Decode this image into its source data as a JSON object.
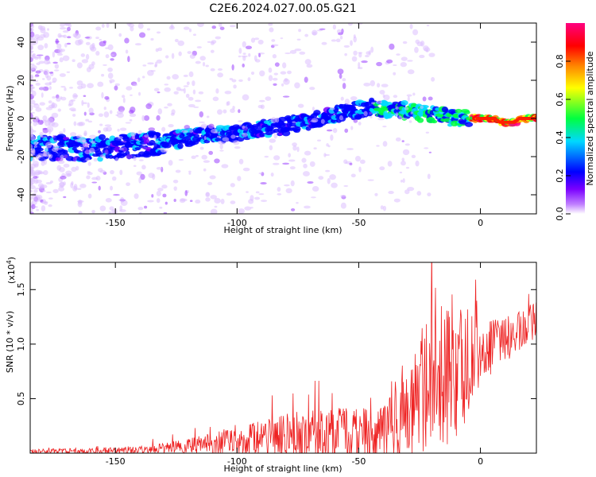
{
  "title": "C2E6.2024.027.00.05.G21",
  "chart_data": [
    {
      "type": "heatmap",
      "xlabel": "Height of straight line (km)",
      "ylabel": "Frequency (Hz)",
      "xlim": [
        -185,
        23
      ],
      "ylim": [
        -50,
        50
      ],
      "xticks": [
        -150,
        -100,
        -50,
        0
      ],
      "yticks": [
        -40,
        -20,
        0,
        20,
        40
      ],
      "colorbar": {
        "label": "Normalized spectral amplitude",
        "range": [
          0,
          1
        ],
        "ticks": [
          "0.0",
          "0.2",
          "0.4",
          "0.6",
          "0.8"
        ],
        "stops": [
          "#ffffff",
          "#c080ff",
          "#7a00ff",
          "#0000ff",
          "#00d8ff",
          "#00ff40",
          "#ffff00",
          "#ff8000",
          "#ff0000",
          "#ff0080"
        ]
      },
      "ridge": [
        {
          "x": -185,
          "y": -15
        },
        {
          "x": -160,
          "y": -16
        },
        {
          "x": -140,
          "y": -14
        },
        {
          "x": -120,
          "y": -10
        },
        {
          "x": -100,
          "y": -7
        },
        {
          "x": -80,
          "y": -4
        },
        {
          "x": -60,
          "y": 2
        },
        {
          "x": -45,
          "y": 6
        },
        {
          "x": -40,
          "y": 5
        },
        {
          "x": -30,
          "y": 4
        },
        {
          "x": -20,
          "y": 2
        },
        {
          "x": -10,
          "y": 0
        },
        {
          "x": 0,
          "y": 0
        },
        {
          "x": 6,
          "y": 0
        },
        {
          "x": 8,
          "y": -2
        },
        {
          "x": 14,
          "y": -2
        },
        {
          "x": 16,
          "y": 0
        },
        {
          "x": 23,
          "y": 0
        }
      ]
    },
    {
      "type": "line",
      "xlabel": "Height of straight line (km)",
      "ylabel": "SNR (10 * v/v)",
      "multiplier": "(x10",
      "multiplier_exp": "4",
      "multiplier_close": ")",
      "xlim": [
        -185,
        23
      ],
      "ylim": [
        0,
        1.75
      ],
      "xticks": [
        -150,
        -100,
        -50,
        0
      ],
      "yticks": [
        "0.5",
        "1.0",
        "1.5"
      ],
      "ytick_values": [
        0.5,
        1.0,
        1.5
      ],
      "color": "#ee2222",
      "envelope": [
        {
          "x": -185,
          "base": 0.01,
          "amp": 0.03
        },
        {
          "x": -140,
          "base": 0.02,
          "amp": 0.05
        },
        {
          "x": -120,
          "base": 0.05,
          "amp": 0.1
        },
        {
          "x": -100,
          "base": 0.08,
          "amp": 0.2
        },
        {
          "x": -80,
          "base": 0.12,
          "amp": 0.3
        },
        {
          "x": -60,
          "base": 0.12,
          "amp": 0.35
        },
        {
          "x": -40,
          "base": 0.12,
          "amp": 0.35
        },
        {
          "x": -30,
          "base": 0.35,
          "amp": 0.7
        },
        {
          "x": -20,
          "base": 0.55,
          "amp": 0.9
        },
        {
          "x": -10,
          "base": 0.65,
          "amp": 1.0
        },
        {
          "x": 0,
          "base": 0.85,
          "amp": 0.4
        },
        {
          "x": 10,
          "base": 1.0,
          "amp": 0.3
        },
        {
          "x": 23,
          "base": 1.2,
          "amp": 0.25
        }
      ]
    }
  ]
}
